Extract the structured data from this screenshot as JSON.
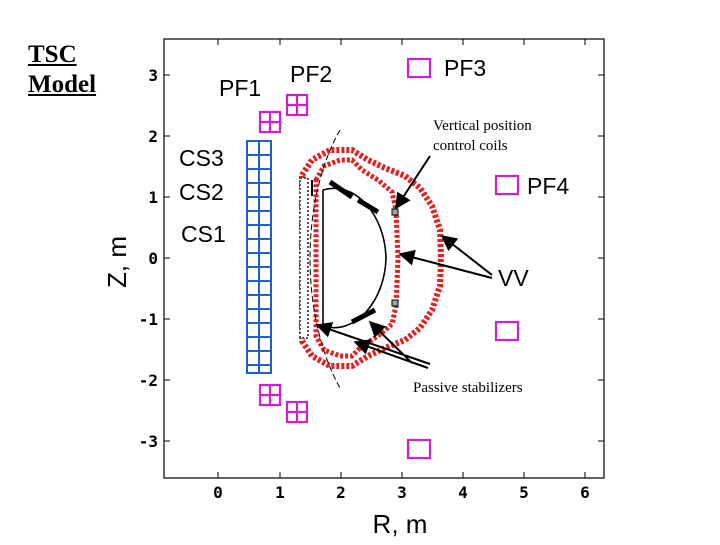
{
  "title": [
    "TSC",
    "Model"
  ],
  "axes": {
    "xlabel": "R, m",
    "ylabel": "Z, m",
    "xticks": [
      "0",
      "1",
      "2",
      "3",
      "4",
      "5",
      "6"
    ],
    "yticks": [
      "3",
      "2",
      "1",
      "0",
      "-1",
      "-2",
      "-3"
    ]
  },
  "coil_labels": {
    "pf1": "PF1",
    "pf2": "PF2",
    "pf3": "PF3",
    "pf4": "PF4",
    "cs3": "CS3",
    "cs2": "CS2",
    "cs1": "CS1",
    "vv": "VV"
  },
  "annotations": {
    "vertical_coils": [
      "Vertical position",
      "control coils"
    ],
    "passive": "Passive stabilizers"
  },
  "colors": {
    "pf_coils": "#cc22cc",
    "central_solenoid": "#1f5fc8",
    "vessel": "#dd2222",
    "plasma_boundary": "#000000"
  }
}
